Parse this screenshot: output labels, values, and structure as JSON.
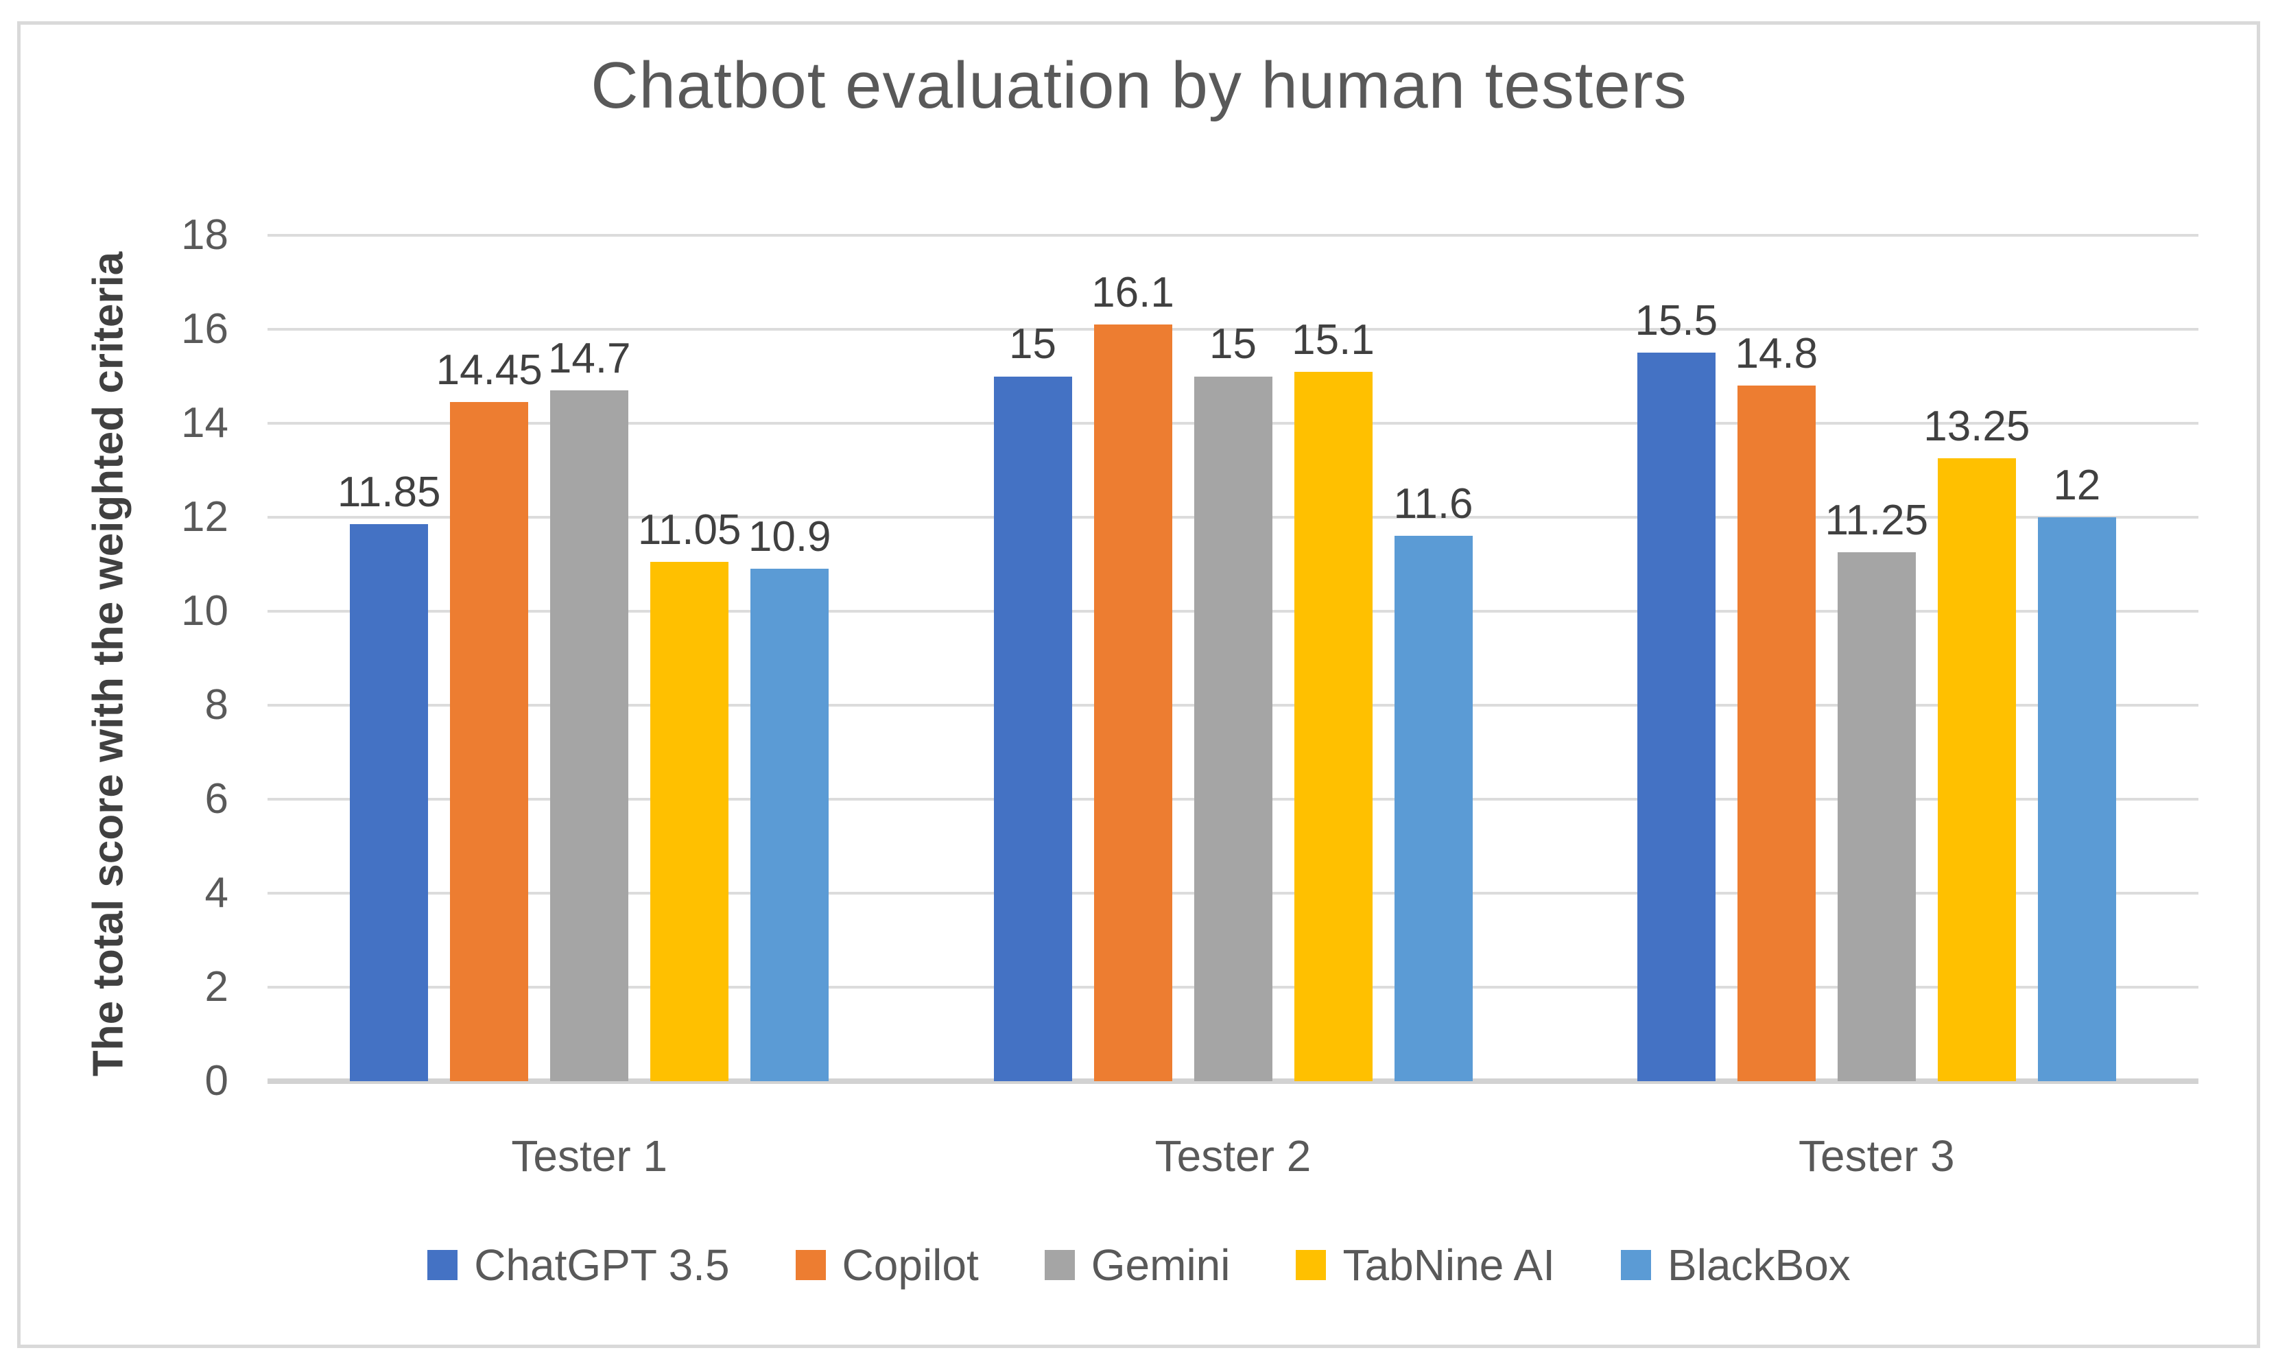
{
  "chart_data": {
    "type": "bar",
    "title": "Chatbot evaluation by human testers",
    "xlabel": "",
    "ylabel": "The total score with the weighted criteria",
    "categories": [
      "Tester 1",
      "Tester 2",
      "Tester 3"
    ],
    "series": [
      {
        "name": "ChatGPT 3.5",
        "color": "#4472C4",
        "values": [
          11.85,
          15,
          15.5
        ]
      },
      {
        "name": "Copilot",
        "color": "#ED7D31",
        "values": [
          14.45,
          16.1,
          14.8
        ]
      },
      {
        "name": "Gemini",
        "color": "#A5A5A5",
        "values": [
          14.7,
          15,
          11.25
        ]
      },
      {
        "name": "TabNine AI",
        "color": "#FFC000",
        "values": [
          11.05,
          15.1,
          13.25
        ]
      },
      {
        "name": "BlackBox",
        "color": "#5B9BD5",
        "values": [
          10.9,
          11.6,
          12
        ]
      }
    ],
    "ylim": [
      0,
      18
    ],
    "ytick_step": 2,
    "ytick_labels": [
      "0",
      "2",
      "4",
      "6",
      "8",
      "10",
      "12",
      "14",
      "16",
      "18"
    ],
    "grid": true,
    "data_labels_shown": true,
    "legend_position": "bottom"
  },
  "colors": {
    "background": "#FFFFFF",
    "frame_border": "#D9D9D9",
    "gridline": "#DCDCDC",
    "axis_line": "#D2D2D2",
    "title_text": "#595959",
    "axis_text": "#595959",
    "data_label_text": "#404040",
    "y_axis_title_text": "#404040"
  }
}
